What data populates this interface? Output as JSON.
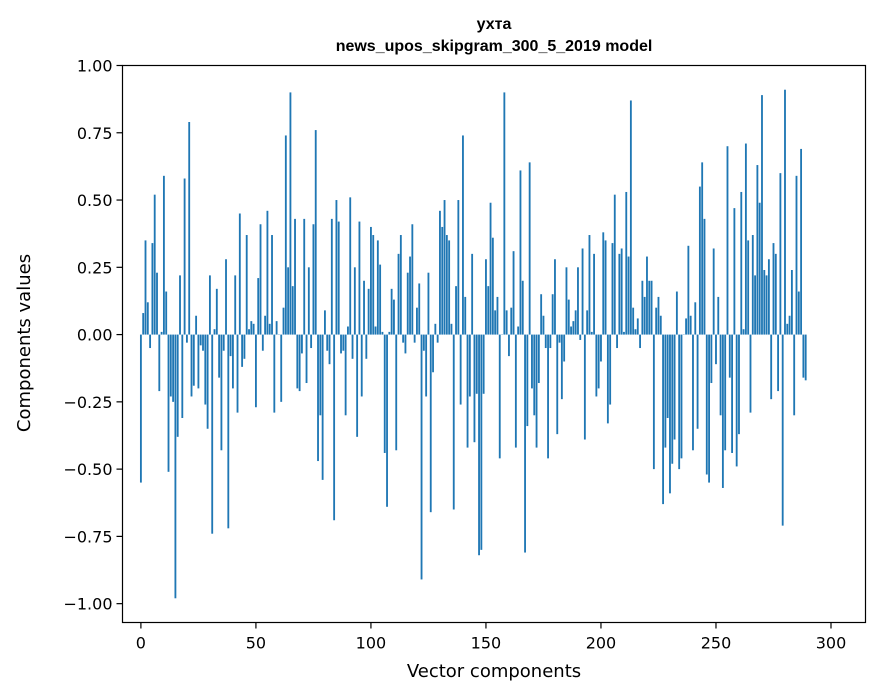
{
  "chart_data": {
    "type": "bar",
    "title": "ухта",
    "subtitle": "news_upos_skipgram_300_5_2019 model",
    "xlabel": "Vector components",
    "ylabel": "Components values",
    "xlim": [
      -8,
      315
    ],
    "ylim": [
      -1.07,
      1.0
    ],
    "xticks": [
      0,
      50,
      100,
      150,
      200,
      250,
      300
    ],
    "xtick_labels": [
      "0",
      "50",
      "100",
      "150",
      "200",
      "250",
      "300"
    ],
    "yticks": [
      1.0,
      0.75,
      0.5,
      0.25,
      0.0,
      -0.25,
      -0.5,
      -0.75,
      -1.0
    ],
    "ytick_labels": [
      "1.00",
      "0.75",
      "0.50",
      "0.25",
      "0.00",
      "−0.25",
      "−0.50",
      "−0.75",
      "−1.00"
    ],
    "bar_color": "#1f77b4",
    "grid": false,
    "values": [
      -0.55,
      0.08,
      0.35,
      0.12,
      -0.05,
      0.34,
      0.52,
      0.23,
      -0.21,
      0.01,
      0.59,
      0.16,
      -0.51,
      -0.23,
      -0.25,
      -0.98,
      -0.38,
      0.22,
      -0.31,
      0.58,
      -0.03,
      0.79,
      -0.23,
      -0.19,
      0.07,
      -0.2,
      -0.04,
      -0.06,
      -0.26,
      -0.35,
      0.22,
      -0.74,
      0.02,
      0.17,
      -0.16,
      -0.43,
      -0.06,
      0.28,
      -0.72,
      -0.08,
      -0.2,
      0.22,
      -0.29,
      0.45,
      -0.12,
      -0.09,
      0.37,
      0.02,
      0.05,
      0.04,
      -0.27,
      0.21,
      0.41,
      -0.06,
      0.07,
      0.46,
      0.04,
      0.37,
      -0.29,
      0.05,
      0.0,
      -0.25,
      0.1,
      0.74,
      0.25,
      0.9,
      0.18,
      0.43,
      -0.2,
      -0.21,
      -0.07,
      0.43,
      -0.18,
      0.25,
      -0.05,
      0.41,
      0.76,
      -0.47,
      -0.3,
      -0.54,
      0.09,
      -0.06,
      -0.11,
      0.43,
      -0.69,
      0.5,
      0.42,
      -0.07,
      -0.06,
      -0.3,
      0.03,
      0.51,
      -0.09,
      0.25,
      -0.38,
      0.42,
      -0.23,
      0.2,
      -0.09,
      0.17,
      0.4,
      0.37,
      0.03,
      0.35,
      0.26,
      0.01,
      -0.44,
      -0.64,
      0.01,
      0.17,
      0.13,
      -0.43,
      0.3,
      0.37,
      -0.03,
      -0.07,
      0.23,
      0.29,
      0.41,
      -0.03,
      0.1,
      0.19,
      -0.91,
      -0.06,
      -0.23,
      0.23,
      -0.66,
      -0.14,
      0.04,
      -0.03,
      0.46,
      0.4,
      0.5,
      0.37,
      0.35,
      0.04,
      -0.65,
      0.18,
      0.5,
      -0.26,
      0.74,
      0.14,
      -0.42,
      -0.23,
      0.3,
      -0.4,
      -0.22,
      -0.82,
      -0.8,
      -0.22,
      0.28,
      0.18,
      0.49,
      0.36,
      0.09,
      0.14,
      -0.46,
      0.0,
      0.9,
      0.09,
      -0.08,
      0.1,
      0.31,
      -0.42,
      0.03,
      0.61,
      0.2,
      -0.81,
      -0.34,
      0.64,
      -0.2,
      -0.3,
      -0.42,
      -0.18,
      0.15,
      0.07,
      -0.05,
      -0.46,
      -0.05,
      0.15,
      0.28,
      -0.37,
      -0.03,
      -0.24,
      -0.1,
      0.25,
      0.13,
      0.03,
      0.05,
      0.09,
      0.25,
      -0.02,
      0.32,
      -0.39,
      0.09,
      0.37,
      0.01,
      0.3,
      -0.23,
      -0.2,
      -0.1,
      0.38,
      0.35,
      -0.33,
      -0.26,
      0.34,
      0.52,
      -0.05,
      0.3,
      0.32,
      0.01,
      0.53,
      0.29,
      0.87,
      0.1,
      0.02,
      0.06,
      -0.05,
      0.2,
      0.14,
      0.29,
      0.2,
      0.2,
      -0.5,
      0.1,
      0.14,
      0.07,
      -0.63,
      -0.42,
      -0.31,
      -0.59,
      -0.48,
      -0.39,
      0.16,
      -0.5,
      -0.46,
      0.0,
      0.06,
      0.33,
      0.07,
      -0.43,
      0.12,
      -0.35,
      0.55,
      0.64,
      0.43,
      -0.52,
      -0.55,
      -0.18,
      0.32,
      -0.11,
      0.14,
      -0.3,
      -0.57,
      -0.43,
      0.7,
      -0.16,
      -0.44,
      0.47,
      -0.49,
      -0.37,
      0.53,
      0.02,
      0.71,
      0.35,
      -0.29,
      0.37,
      0.22,
      0.63,
      0.49,
      0.89,
      0.24,
      0.22,
      0.28,
      -0.24,
      0.34,
      0.3,
      -0.21,
      0.6,
      -0.71,
      0.91,
      0.04,
      0.07,
      0.24,
      -0.3,
      0.59,
      0.16,
      0.69,
      -0.16,
      -0.17
    ]
  }
}
